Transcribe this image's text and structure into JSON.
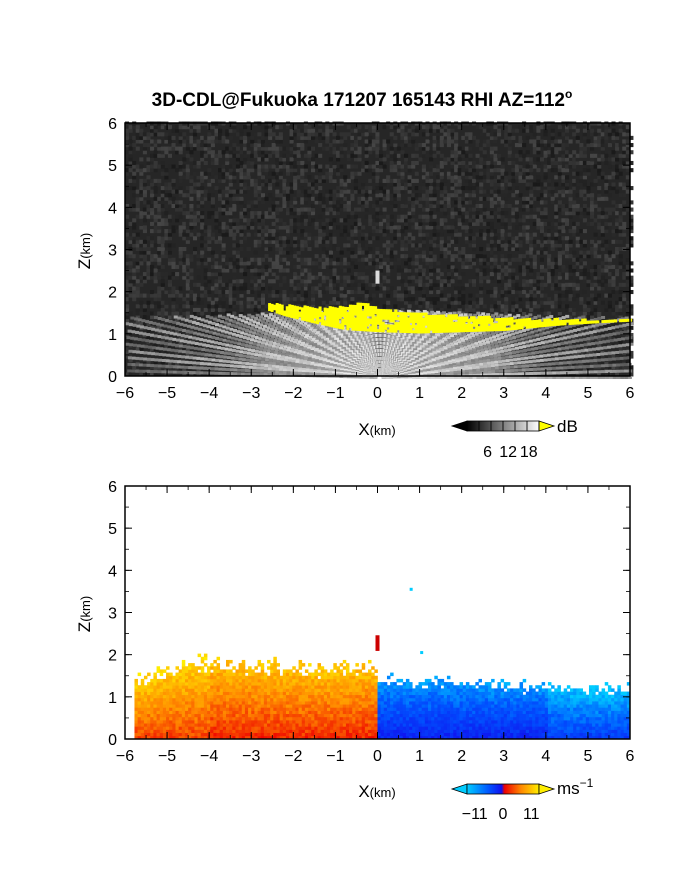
{
  "chart_data": [
    {
      "type": "heatmap",
      "title": "3D-CDL@Fukuoka 171207 165143 RHI AZ=112",
      "title_superscript": "o",
      "xlabel": "X",
      "xlabel_unit": "(km)",
      "ylabel": "Z",
      "ylabel_unit": "(km)",
      "xlim": [
        -6,
        6
      ],
      "ylim": [
        0,
        6
      ],
      "x_ticks": [
        -6,
        -5,
        -4,
        -3,
        -2,
        -1,
        0,
        1,
        2,
        3,
        4,
        5,
        6
      ],
      "y_ticks": [
        0,
        1,
        2,
        3,
        4,
        5,
        6
      ],
      "background": "#262626",
      "colorbar": {
        "unit": "dB",
        "ticks": [
          6,
          12,
          18
        ],
        "range": [
          0,
          21
        ],
        "colors": [
          "#000000",
          "#ffffff"
        ],
        "over_color": "#ffff00"
      },
      "features": {
        "cloud_base_layer": {
          "color": "#ffff00",
          "x_range": [
            -2.6,
            6
          ],
          "base_km": [
            [
              -2.6,
              1.55
            ],
            [
              -2.2,
              1.42
            ],
            [
              -1.5,
              1.25
            ],
            [
              -0.8,
              1.1
            ],
            [
              0,
              1.05
            ],
            [
              1,
              1.02
            ],
            [
              2,
              1.05
            ],
            [
              3,
              1.08
            ],
            [
              3.7,
              1.15
            ],
            [
              4.2,
              1.2
            ],
            [
              5,
              1.25
            ],
            [
              6,
              1.3
            ]
          ],
          "top_km": [
            [
              -2.6,
              1.7
            ],
            [
              -2.2,
              1.65
            ],
            [
              -1.5,
              1.6
            ],
            [
              -0.8,
              1.62
            ],
            [
              -0.4,
              1.72
            ],
            [
              0,
              1.58
            ],
            [
              1,
              1.45
            ],
            [
              2,
              1.4
            ],
            [
              3,
              1.35
            ],
            [
              3.7,
              1.32
            ],
            [
              4.2,
              1.33
            ],
            [
              5,
              1.3
            ],
            [
              6,
              1.35
            ]
          ]
        },
        "clear_air_fan": {
          "max_range_km": 6.2,
          "top_km_near_edges": 1.6
        },
        "isolated_echo": {
          "x_km": 0.0,
          "z_km": [
            2.2,
            2.45
          ]
        }
      }
    },
    {
      "type": "heatmap",
      "xlabel": "X",
      "xlabel_unit": "(km)",
      "ylabel": "Z",
      "ylabel_unit": "(km)",
      "xlim": [
        -6,
        6
      ],
      "ylim": [
        0,
        6
      ],
      "x_ticks": [
        -6,
        -5,
        -4,
        -3,
        -2,
        -1,
        0,
        1,
        2,
        3,
        4,
        5,
        6
      ],
      "y_ticks": [
        0,
        1,
        2,
        3,
        4,
        5,
        6
      ],
      "background": "#ffffff",
      "colorbar": {
        "unit": "ms",
        "unit_superscript": "−1",
        "ticks": [
          "−11",
          "0",
          "11"
        ],
        "tick_values": [
          -11,
          0,
          11
        ],
        "range": [
          -14,
          14
        ],
        "colors": [
          "#00ccff",
          "#0055ff",
          "#1010ee",
          "#ee0000",
          "#ff8800",
          "#ffee00"
        ]
      },
      "features": {
        "negative_region": {
          "x_range": [
            0,
            6
          ],
          "velocity_ms": [
            -6,
            -11
          ],
          "top_km": [
            [
              0,
              1.55
            ],
            [
              1,
              1.5
            ],
            [
              2,
              1.45
            ],
            [
              3,
              1.4
            ],
            [
              4,
              1.35
            ],
            [
              5,
              1.3
            ],
            [
              6,
              1.3
            ]
          ]
        },
        "positive_region": {
          "x_range": [
            -5.8,
            0
          ],
          "velocity_ms": [
            6,
            11
          ],
          "top_km": [
            [
              -5.8,
              1.5
            ],
            [
              -4.5,
              2.0
            ],
            [
              -3,
              1.95
            ],
            [
              -2,
              1.85
            ],
            [
              -1,
              1.8
            ],
            [
              -0.2,
              1.9
            ],
            [
              0,
              1.7
            ]
          ]
        },
        "isolated_echo": {
          "x_km": 0.0,
          "z_km": [
            2.1,
            2.45
          ],
          "color": "#cc0000"
        },
        "stray_points": [
          [
            0.8,
            3.55
          ],
          [
            1.05,
            2.05
          ]
        ]
      }
    }
  ]
}
